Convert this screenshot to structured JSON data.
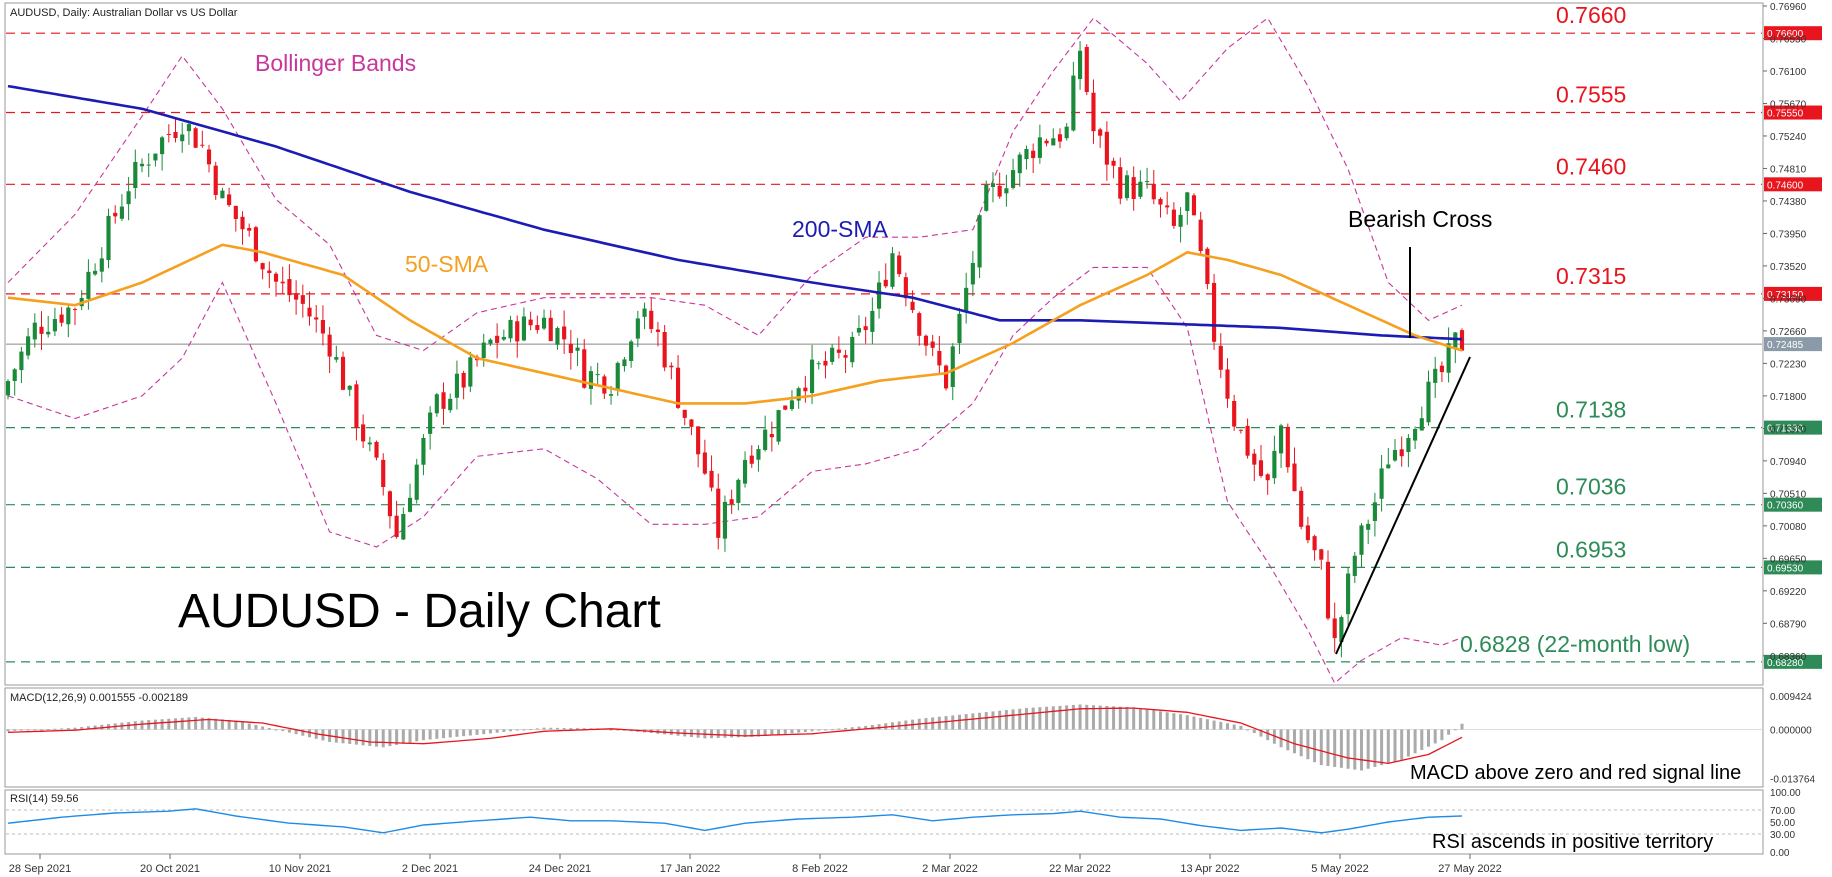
{
  "panels": {
    "main_label": "AUDUSD, Daily:  Australian Dollar vs US Dollar",
    "macd_label": "MACD(12,26,9) 0.001555 -0.002189",
    "rsi_label": "RSI(14) 59.56"
  },
  "annotations": {
    "big_title": "AUDUSD - Daily Chart",
    "bollinger": "Bollinger Bands",
    "sma50": "50-SMA",
    "sma200": "200-SMA",
    "bearish_cross": "Bearish Cross",
    "macd_note": "MACD above zero and red signal line",
    "rsi_note": "RSI ascends in positive territory"
  },
  "colors": {
    "candle_up": "#1a8a3a",
    "candle_down": "#e8141e",
    "sma200": "#1c1cb4",
    "sma50": "#f5a01e",
    "bollinger": "#c8379b",
    "level_red": "#e8141e",
    "level_green": "#2e8b57",
    "macd_hist": "#aaaaaa",
    "macd_signal": "#e8141e",
    "rsi_line": "#1e8ce6",
    "trendline": "#000000",
    "axis_text": "#333333"
  },
  "chart_data": [
    {
      "type": "candlestick",
      "title": "AUDUSD, Daily:  Australian Dollar vs US Dollar",
      "ylim": [
        0.68,
        0.7696
      ],
      "y_ticks": [
        "0.76960",
        "0.76530",
        "0.76100",
        "0.75670",
        "0.75240",
        "0.74810",
        "0.74380",
        "0.73950",
        "0.73520",
        "0.73090",
        "0.72660",
        "0.72230",
        "0.71800",
        "0.71370",
        "0.70940",
        "0.70510",
        "0.70080",
        "0.69650",
        "0.69220",
        "0.68790",
        "0.68360"
      ],
      "x_ticks": [
        "28 Sep 2021",
        "20 Oct 2021",
        "10 Nov 2021",
        "2 Dec 2021",
        "24 Dec 2021",
        "17 Jan 2022",
        "8 Feb 2022",
        "2 Mar 2022",
        "22 Mar 2022",
        "13 Apr 2022",
        "5 May 2022",
        "27 May 2022"
      ],
      "current_price_label": "0.72485",
      "levels": [
        {
          "value": 0.766,
          "label": "0.7660",
          "axis_label": "0.76600",
          "color": "red"
        },
        {
          "value": 0.7555,
          "label": "0.7555",
          "axis_label": "0.75550",
          "color": "red"
        },
        {
          "value": 0.746,
          "label": "0.7460",
          "axis_label": "0.74600",
          "color": "red"
        },
        {
          "value": 0.7315,
          "label": "0.7315",
          "axis_label": "0.73150",
          "color": "red"
        },
        {
          "value": 0.7138,
          "label": "0.7138",
          "axis_label": "0.71380",
          "color": "green"
        },
        {
          "value": 0.7036,
          "label": "0.7036",
          "axis_label": "0.70360",
          "color": "green"
        },
        {
          "value": 0.6953,
          "label": "0.6953",
          "axis_label": "0.69530",
          "color": "green"
        },
        {
          "value": 0.6828,
          "label": "0.6828 (22-month low)",
          "axis_label": "0.68280",
          "color": "green"
        }
      ],
      "close_anchors": [
        [
          0,
          0.72
        ],
        [
          4,
          0.727
        ],
        [
          10,
          0.73
        ],
        [
          14,
          0.738
        ],
        [
          18,
          0.746
        ],
        [
          22,
          0.751
        ],
        [
          26,
          0.7545
        ],
        [
          29,
          0.751
        ],
        [
          32,
          0.744
        ],
        [
          36,
          0.739
        ],
        [
          40,
          0.733
        ],
        [
          44,
          0.73
        ],
        [
          48,
          0.725
        ],
        [
          52,
          0.715
        ],
        [
          56,
          0.706
        ],
        [
          58,
          0.6995
        ],
        [
          60,
          0.706
        ],
        [
          64,
          0.717
        ],
        [
          68,
          0.72
        ],
        [
          72,
          0.725
        ],
        [
          76,
          0.727
        ],
        [
          80,
          0.728
        ],
        [
          84,
          0.725
        ],
        [
          86,
          0.721
        ],
        [
          90,
          0.72
        ],
        [
          94,
          0.729
        ],
        [
          97,
          0.726
        ],
        [
          100,
          0.718
        ],
        [
          104,
          0.708
        ],
        [
          106,
          0.7
        ],
        [
          110,
          0.71
        ],
        [
          114,
          0.714
        ],
        [
          118,
          0.72
        ],
        [
          122,
          0.722
        ],
        [
          126,
          0.724
        ],
        [
          129,
          0.729
        ],
        [
          132,
          0.737
        ],
        [
          135,
          0.73
        ],
        [
          138,
          0.723
        ],
        [
          140,
          0.72
        ],
        [
          142,
          0.728
        ],
        [
          146,
          0.744
        ],
        [
          150,
          0.748
        ],
        [
          154,
          0.752
        ],
        [
          158,
          0.753
        ],
        [
          160,
          0.764
        ],
        [
          162,
          0.753
        ],
        [
          166,
          0.746
        ],
        [
          170,
          0.745
        ],
        [
          174,
          0.74
        ],
        [
          176,
          0.744
        ],
        [
          178,
          0.736
        ],
        [
          180,
          0.726
        ],
        [
          183,
          0.715
        ],
        [
          186,
          0.709
        ],
        [
          188,
          0.706
        ],
        [
          190,
          0.714
        ],
        [
          193,
          0.701
        ],
        [
          196,
          0.695
        ],
        [
          198,
          0.685
        ],
        [
          201,
          0.697
        ],
        [
          204,
          0.704
        ],
        [
          206,
          0.71
        ],
        [
          208,
          0.712
        ],
        [
          211,
          0.717
        ],
        [
          214,
          0.721
        ],
        [
          216,
          0.725
        ],
        [
          217,
          0.725
        ]
      ],
      "sma200_anchors": [
        [
          0,
          0.759
        ],
        [
          20,
          0.756
        ],
        [
          40,
          0.751
        ],
        [
          60,
          0.745
        ],
        [
          80,
          0.74
        ],
        [
          100,
          0.736
        ],
        [
          120,
          0.733
        ],
        [
          135,
          0.731
        ],
        [
          148,
          0.728
        ],
        [
          160,
          0.728
        ],
        [
          175,
          0.7275
        ],
        [
          190,
          0.727
        ],
        [
          205,
          0.726
        ],
        [
          217,
          0.7255
        ]
      ],
      "sma50_anchors": [
        [
          0,
          0.731
        ],
        [
          10,
          0.73
        ],
        [
          20,
          0.733
        ],
        [
          32,
          0.738
        ],
        [
          38,
          0.737
        ],
        [
          50,
          0.734
        ],
        [
          60,
          0.728
        ],
        [
          70,
          0.723
        ],
        [
          80,
          0.721
        ],
        [
          90,
          0.719
        ],
        [
          100,
          0.717
        ],
        [
          110,
          0.717
        ],
        [
          120,
          0.718
        ],
        [
          130,
          0.72
        ],
        [
          140,
          0.721
        ],
        [
          150,
          0.725
        ],
        [
          160,
          0.73
        ],
        [
          170,
          0.734
        ],
        [
          176,
          0.737
        ],
        [
          182,
          0.736
        ],
        [
          190,
          0.734
        ],
        [
          200,
          0.73
        ],
        [
          210,
          0.726
        ],
        [
          217,
          0.724
        ]
      ],
      "bollinger_upper_anchors": [
        [
          0,
          0.733
        ],
        [
          10,
          0.742
        ],
        [
          20,
          0.755
        ],
        [
          26,
          0.763
        ],
        [
          32,
          0.756
        ],
        [
          40,
          0.744
        ],
        [
          48,
          0.738
        ],
        [
          55,
          0.726
        ],
        [
          62,
          0.724
        ],
        [
          70,
          0.729
        ],
        [
          80,
          0.731
        ],
        [
          88,
          0.731
        ],
        [
          96,
          0.731
        ],
        [
          104,
          0.73
        ],
        [
          112,
          0.726
        ],
        [
          120,
          0.734
        ],
        [
          128,
          0.739
        ],
        [
          136,
          0.739
        ],
        [
          144,
          0.74
        ],
        [
          150,
          0.753
        ],
        [
          156,
          0.761
        ],
        [
          162,
          0.768
        ],
        [
          170,
          0.762
        ],
        [
          175,
          0.757
        ],
        [
          182,
          0.764
        ],
        [
          188,
          0.768
        ],
        [
          194,
          0.759
        ],
        [
          200,
          0.748
        ],
        [
          206,
          0.733
        ],
        [
          212,
          0.728
        ],
        [
          217,
          0.73
        ]
      ],
      "bollinger_lower_anchors": [
        [
          0,
          0.718
        ],
        [
          10,
          0.715
        ],
        [
          20,
          0.718
        ],
        [
          26,
          0.723
        ],
        [
          32,
          0.733
        ],
        [
          40,
          0.717
        ],
        [
          48,
          0.7
        ],
        [
          55,
          0.698
        ],
        [
          62,
          0.702
        ],
        [
          70,
          0.71
        ],
        [
          80,
          0.711
        ],
        [
          88,
          0.707
        ],
        [
          96,
          0.701
        ],
        [
          104,
          0.701
        ],
        [
          112,
          0.702
        ],
        [
          120,
          0.708
        ],
        [
          128,
          0.709
        ],
        [
          136,
          0.711
        ],
        [
          144,
          0.717
        ],
        [
          150,
          0.726
        ],
        [
          156,
          0.731
        ],
        [
          162,
          0.735
        ],
        [
          170,
          0.735
        ],
        [
          176,
          0.727
        ],
        [
          182,
          0.704
        ],
        [
          188,
          0.696
        ],
        [
          194,
          0.687
        ],
        [
          198,
          0.68
        ],
        [
          202,
          0.683
        ],
        [
          208,
          0.686
        ],
        [
          214,
          0.685
        ],
        [
          217,
          0.686
        ]
      ]
    },
    {
      "type": "bar",
      "title": "MACD(12,26,9) 0.001555 -0.002189",
      "ylim": [
        -0.015,
        0.0105
      ],
      "y_ticks": [
        "0.009424",
        "0.000000",
        "-0.013764"
      ],
      "histogram_anchors": [
        [
          0,
          -0.0005
        ],
        [
          10,
          0.0005
        ],
        [
          20,
          0.0025
        ],
        [
          28,
          0.0035
        ],
        [
          34,
          0.0025
        ],
        [
          40,
          0.0
        ],
        [
          48,
          -0.0035
        ],
        [
          56,
          -0.005
        ],
        [
          62,
          -0.003
        ],
        [
          70,
          -0.0015
        ],
        [
          80,
          0.0005
        ],
        [
          88,
          0.0003
        ],
        [
          96,
          -0.001
        ],
        [
          104,
          -0.0025
        ],
        [
          112,
          -0.002
        ],
        [
          120,
          -0.0005
        ],
        [
          128,
          0.001
        ],
        [
          136,
          0.003
        ],
        [
          144,
          0.0045
        ],
        [
          152,
          0.006
        ],
        [
          160,
          0.007
        ],
        [
          168,
          0.0062
        ],
        [
          176,
          0.004
        ],
        [
          184,
          0.001
        ],
        [
          190,
          -0.005
        ],
        [
          196,
          -0.01
        ],
        [
          202,
          -0.0115
        ],
        [
          208,
          -0.0085
        ],
        [
          214,
          -0.003
        ],
        [
          217,
          0.0016
        ]
      ],
      "signal_anchors": [
        [
          0,
          -0.0008
        ],
        [
          10,
          -0.0002
        ],
        [
          20,
          0.0015
        ],
        [
          30,
          0.0028
        ],
        [
          38,
          0.0018
        ],
        [
          46,
          -0.0012
        ],
        [
          54,
          -0.0035
        ],
        [
          62,
          -0.004
        ],
        [
          72,
          -0.0025
        ],
        [
          80,
          -0.0005
        ],
        [
          90,
          0.0002
        ],
        [
          100,
          -0.001
        ],
        [
          110,
          -0.0018
        ],
        [
          120,
          -0.0012
        ],
        [
          130,
          0.0005
        ],
        [
          140,
          0.0022
        ],
        [
          150,
          0.004
        ],
        [
          160,
          0.0058
        ],
        [
          168,
          0.006
        ],
        [
          176,
          0.0048
        ],
        [
          184,
          0.0018
        ],
        [
          192,
          -0.004
        ],
        [
          200,
          -0.008
        ],
        [
          206,
          -0.0095
        ],
        [
          212,
          -0.007
        ],
        [
          217,
          -0.0022
        ]
      ]
    },
    {
      "type": "line",
      "title": "RSI(14) 59.56",
      "ylim": [
        0,
        100
      ],
      "y_ticks": [
        "100.00",
        "70.00",
        "50.00",
        "30.00",
        "0.00"
      ],
      "rsi_anchors": [
        [
          0,
          48
        ],
        [
          8,
          58
        ],
        [
          16,
          65
        ],
        [
          24,
          68
        ],
        [
          28,
          72
        ],
        [
          34,
          60
        ],
        [
          42,
          48
        ],
        [
          50,
          42
        ],
        [
          56,
          32
        ],
        [
          62,
          45
        ],
        [
          70,
          52
        ],
        [
          78,
          58
        ],
        [
          84,
          52
        ],
        [
          90,
          52
        ],
        [
          98,
          48
        ],
        [
          104,
          36
        ],
        [
          110,
          48
        ],
        [
          118,
          55
        ],
        [
          126,
          58
        ],
        [
          132,
          62
        ],
        [
          138,
          52
        ],
        [
          144,
          58
        ],
        [
          150,
          62
        ],
        [
          156,
          64
        ],
        [
          160,
          68
        ],
        [
          166,
          58
        ],
        [
          172,
          55
        ],
        [
          178,
          44
        ],
        [
          184,
          36
        ],
        [
          190,
          40
        ],
        [
          196,
          32
        ],
        [
          200,
          38
        ],
        [
          206,
          50
        ],
        [
          212,
          58
        ],
        [
          217,
          60
        ]
      ]
    }
  ]
}
